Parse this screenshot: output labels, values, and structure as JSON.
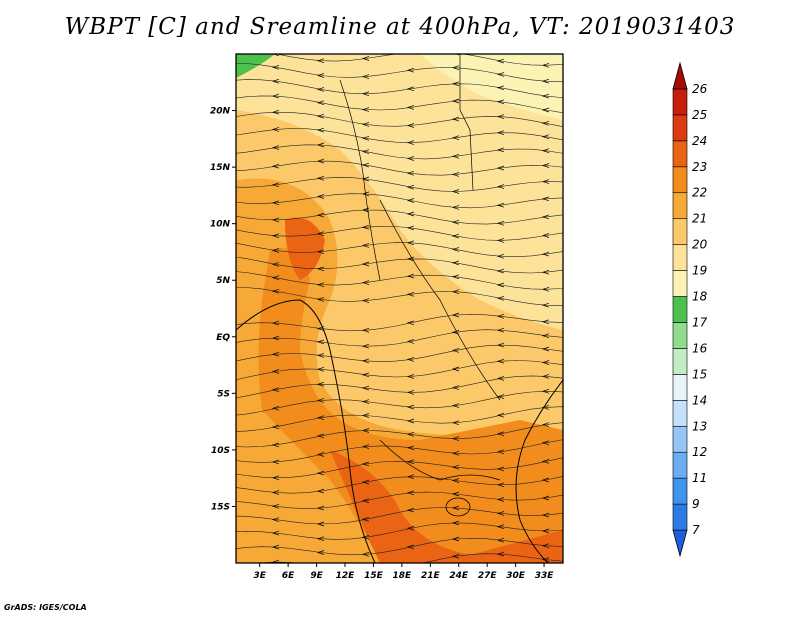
{
  "chart_data": {
    "type": "heatmap",
    "title": "WBPT [C] and Sreamline at 400hPa, VT: 2019031403",
    "x_ticks": [
      "3E",
      "6E",
      "9E",
      "12E",
      "15E",
      "18E",
      "21E",
      "24E",
      "27E",
      "30E",
      "33E"
    ],
    "x_tick_values": [
      3,
      6,
      9,
      12,
      15,
      18,
      21,
      24,
      27,
      30,
      33
    ],
    "y_ticks": [
      "20N",
      "15N",
      "10N",
      "5N",
      "EQ",
      "5S",
      "10S",
      "15S"
    ],
    "y_tick_values": [
      20,
      15,
      10,
      5,
      0,
      -5,
      -10,
      -15
    ],
    "xlim": [
      0.5,
      35
    ],
    "ylim": [
      -20,
      25
    ],
    "colorbar": {
      "labels": [
        "7",
        "9",
        "11",
        "12",
        "13",
        "14",
        "15",
        "16",
        "17",
        "18",
        "19",
        "20",
        "21",
        "22",
        "23",
        "24",
        "25",
        "26"
      ],
      "colors": [
        "#1f5fdc",
        "#2d7be6",
        "#3f95ee",
        "#6aadf2",
        "#96c5f6",
        "#c4e0fa",
        "#e8f6fc",
        "#c4ecc4",
        "#8fdc8f",
        "#4cc24c",
        "#fbf3b4",
        "#fde39a",
        "#fbc96a",
        "#f7a938",
        "#f28c1c",
        "#ea6414",
        "#dc3a10",
        "#c81c0c",
        "#aa0a06"
      ]
    },
    "contour_fields": [
      {
        "name": "",
        "value_range": [
          19,
          20
        ],
        "region": "north-east"
      },
      {
        "name": "",
        "value_range": [
          20,
          21
        ],
        "region": "central"
      },
      {
        "name": "",
        "value_range": [
          21,
          22
        ],
        "region": "west-south"
      },
      {
        "name": "",
        "value_range": [
          22,
          23
        ],
        "region": "south-central"
      }
    ],
    "streamlines": true
  },
  "credit": "GrADS: IGES/COLA"
}
